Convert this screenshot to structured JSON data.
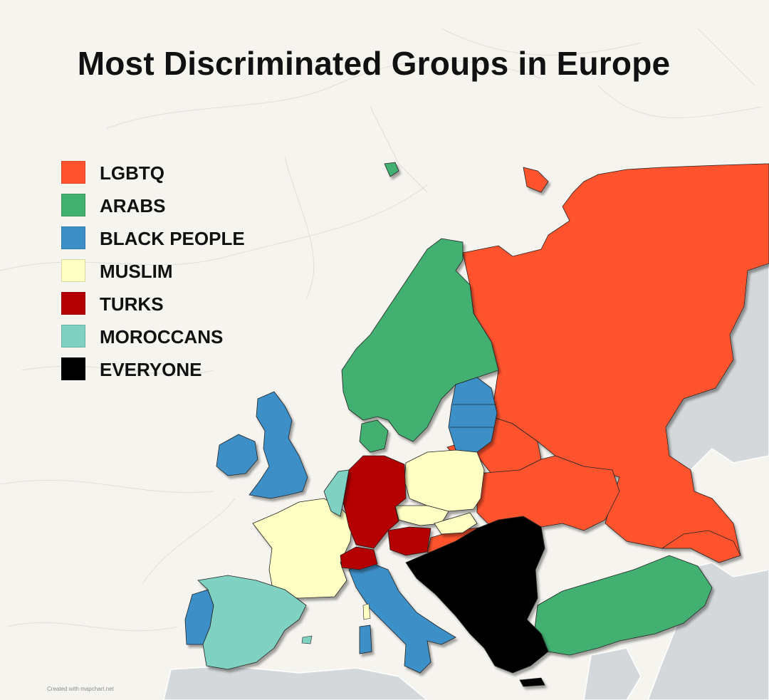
{
  "title": "Most Discriminated Groups in Europe",
  "legend": [
    {
      "label": "LGBTQ",
      "color": "#ff532f"
    },
    {
      "label": "ARABS",
      "color": "#42b06f"
    },
    {
      "label": "BLACK PEOPLE",
      "color": "#3d8fc8"
    },
    {
      "label": "MUSLIM",
      "color": "#ffffc4"
    },
    {
      "label": "TURKS",
      "color": "#b40000"
    },
    {
      "label": "MOROCCANS",
      "color": "#7fd1c2"
    },
    {
      "label": "EVERYONE",
      "color": "#000000"
    }
  ],
  "regions": [
    {
      "country": "Russia",
      "group": "LGBTQ"
    },
    {
      "country": "Belarus",
      "group": "LGBTQ"
    },
    {
      "country": "Ukraine",
      "group": "LGBTQ"
    },
    {
      "country": "Moldova",
      "group": "LGBTQ"
    },
    {
      "country": "Georgia",
      "group": "LGBTQ"
    },
    {
      "country": "Armenia",
      "group": "LGBTQ"
    },
    {
      "country": "Azerbaijan",
      "group": "LGBTQ"
    },
    {
      "country": "Romania",
      "group": "LGBTQ"
    },
    {
      "country": "Norway",
      "group": "ARABS"
    },
    {
      "country": "Sweden",
      "group": "ARABS"
    },
    {
      "country": "Finland",
      "group": "ARABS"
    },
    {
      "country": "Denmark",
      "group": "ARABS"
    },
    {
      "country": "Turkey",
      "group": "ARABS"
    },
    {
      "country": "Iceland",
      "group": "ARABS"
    },
    {
      "country": "United Kingdom",
      "group": "BLACK PEOPLE"
    },
    {
      "country": "Ireland",
      "group": "BLACK PEOPLE"
    },
    {
      "country": "Estonia",
      "group": "BLACK PEOPLE"
    },
    {
      "country": "Latvia",
      "group": "BLACK PEOPLE"
    },
    {
      "country": "Lithuania",
      "group": "BLACK PEOPLE"
    },
    {
      "country": "Italy",
      "group": "BLACK PEOPLE"
    },
    {
      "country": "Portugal",
      "group": "BLACK PEOPLE"
    },
    {
      "country": "France",
      "group": "MUSLIM"
    },
    {
      "country": "Poland",
      "group": "MUSLIM"
    },
    {
      "country": "Czechia",
      "group": "MUSLIM"
    },
    {
      "country": "Slovakia",
      "group": "MUSLIM"
    },
    {
      "country": "Hungary",
      "group": "MUSLIM"
    },
    {
      "country": "Germany",
      "group": "TURKS"
    },
    {
      "country": "Austria",
      "group": "TURKS"
    },
    {
      "country": "Switzerland",
      "group": "TURKS"
    },
    {
      "country": "Spain",
      "group": "MOROCCANS"
    },
    {
      "country": "Belgium",
      "group": "MOROCCANS"
    },
    {
      "country": "Netherlands",
      "group": "MOROCCANS"
    },
    {
      "country": "Balkans",
      "group": "EVERYONE"
    },
    {
      "country": "Greece",
      "group": "EVERYONE"
    },
    {
      "country": "Bulgaria",
      "group": "EVERYONE"
    }
  ],
  "credit": "Created with mapchart.net"
}
